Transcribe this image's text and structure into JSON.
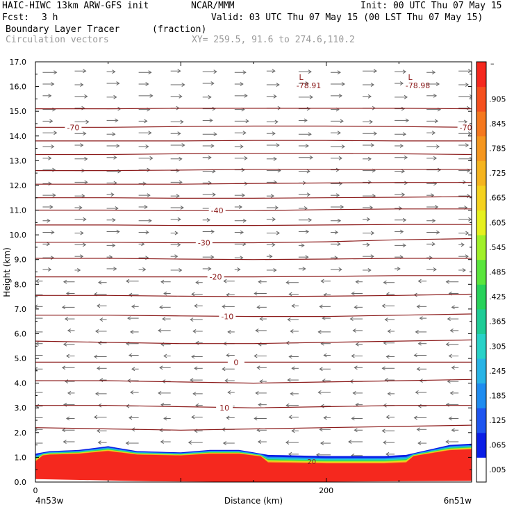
{
  "header": {
    "model": "HAIC-HIWC 13km ARW-GFS init",
    "org": "NCAR/MMM",
    "init": "Init: 00 UTC Thu 07 May 15",
    "fcst_label": "Fcst:",
    "fcst_value": "3 h",
    "valid": "Valid: 03 UTC Thu 07 May 15 (00 LST Thu 07 May 15)",
    "field": "Boundary Layer Tracer",
    "field_units": "(fraction)",
    "overlay": "Circulation vectors",
    "xy": "XY= 259.5, 91.6 to 274.6,110.2"
  },
  "chart_data": {
    "type": "heatmap",
    "xlabel": "Distance (km)",
    "ylabel": "Height (km)",
    "xlim": [
      0,
      300
    ],
    "ylim": [
      0,
      17
    ],
    "x_ticks": [
      0,
      200
    ],
    "y_ticks": [
      "0.0",
      "1.0",
      "2.0",
      "3.0",
      "4.0",
      "5.0",
      "6.0",
      "7.0",
      "8.0",
      "9.0",
      "10.0",
      "11.0",
      "12.0",
      "13.0",
      "14.0",
      "15.0",
      "16.0",
      "17.0"
    ],
    "x_endpoints": {
      "left": "4n53w",
      "right": "6n51w"
    },
    "colorbar": {
      "labels": [
        ".005",
        ".065",
        ".125",
        ".185",
        ".245",
        ".305",
        ".365",
        ".425",
        ".485",
        ".545",
        ".605",
        ".665",
        ".725",
        ".785",
        ".845",
        ".905"
      ],
      "top_mark": "–",
      "colors": [
        "#ffffff",
        "#0a1ee6",
        "#1e55f0",
        "#1e8cf0",
        "#28b4e6",
        "#28d2c8",
        "#1ecc96",
        "#28d25a",
        "#5ae63c",
        "#a0f028",
        "#e6f01e",
        "#f5d21e",
        "#f5b41e",
        "#f5961e",
        "#f5781e",
        "#f5501e",
        "#f5281e"
      ]
    },
    "tracer_surface_km": [
      [
        0,
        1.15
      ],
      [
        10,
        1.25
      ],
      [
        30,
        1.3
      ],
      [
        50,
        1.45
      ],
      [
        70,
        1.25
      ],
      [
        100,
        1.2
      ],
      [
        120,
        1.3
      ],
      [
        140,
        1.3
      ],
      [
        160,
        1.1
      ],
      [
        200,
        1.05
      ],
      [
        240,
        1.05
      ],
      [
        255,
        1.1
      ],
      [
        270,
        1.3
      ],
      [
        285,
        1.5
      ],
      [
        300,
        1.55
      ]
    ],
    "isotherms": [
      {
        "label": "10",
        "x": 130,
        "z": [
          3.1,
          3.1,
          3.05,
          3.0,
          3.05,
          3.1,
          3.1
        ]
      },
      {
        "label": "0",
        "x": 138,
        "z": [
          4.85,
          4.85,
          4.85,
          4.85,
          4.85,
          4.85,
          4.85
        ]
      },
      {
        "label": "-10",
        "x": 132,
        "z": [
          6.75,
          6.75,
          6.72,
          6.7,
          6.7,
          6.75,
          6.8
        ]
      },
      {
        "label": "-20",
        "x": 124,
        "z": [
          8.3,
          8.3,
          8.3,
          8.3,
          8.32,
          8.35,
          8.35
        ]
      },
      {
        "label": "-30",
        "x": 116,
        "z": [
          9.7,
          9.7,
          9.68,
          9.68,
          9.72,
          9.8,
          9.85
        ]
      },
      {
        "label": "-40",
        "x": 125,
        "z": [
          11.0,
          11.0,
          10.98,
          10.98,
          11.02,
          11.05,
          11.05
        ]
      },
      {
        "label": "-70",
        "x": 26,
        "z": [
          14.35,
          14.35,
          14.38,
          14.4,
          14.4,
          14.38,
          14.35
        ]
      },
      {
        "label": "",
        "x": 0,
        "z": [
          2.2,
          2.15,
          2.1,
          2.15,
          2.2,
          2.25,
          2.3
        ]
      },
      {
        "label": "",
        "x": 0,
        "z": [
          4.1,
          4.1,
          4.05,
          4.0,
          4.05,
          4.1,
          4.15
        ]
      },
      {
        "label": "",
        "x": 0,
        "z": [
          5.7,
          5.65,
          5.6,
          5.6,
          5.65,
          5.7,
          5.75
        ]
      },
      {
        "label": "",
        "x": 0,
        "z": [
          7.55,
          7.55,
          7.52,
          7.5,
          7.52,
          7.55,
          7.6
        ]
      },
      {
        "label": "",
        "x": 0,
        "z": [
          9.05,
          9.05,
          9.02,
          9.0,
          9.02,
          9.05,
          9.05
        ]
      },
      {
        "label": "",
        "x": 0,
        "z": [
          10.4,
          10.4,
          10.38,
          10.38,
          10.4,
          10.42,
          10.42
        ]
      },
      {
        "label": "",
        "x": 0,
        "z": [
          11.5,
          11.5,
          11.48,
          11.48,
          11.5,
          11.52,
          11.55
        ]
      },
      {
        "label": "",
        "x": 0,
        "z": [
          12.05,
          12.05,
          12.05,
          12.08,
          12.1,
          12.12,
          12.12
        ]
      },
      {
        "label": "",
        "x": 0,
        "z": [
          12.6,
          12.6,
          12.62,
          12.65,
          12.65,
          12.65,
          12.65
        ]
      },
      {
        "label": "",
        "x": 0,
        "z": [
          13.25,
          13.25,
          13.28,
          13.3,
          13.3,
          13.28,
          13.25
        ]
      },
      {
        "label": "",
        "x": 0,
        "z": [
          13.8,
          13.8,
          13.8,
          13.82,
          13.82,
          13.8,
          13.8
        ]
      },
      {
        "label": "",
        "x": 0,
        "z": [
          15.1,
          15.1,
          15.12,
          15.12,
          15.12,
          15.12,
          15.1
        ]
      }
    ],
    "lows": [
      {
        "label": "L",
        "value": "-78.91",
        "x": 188,
        "z": 16.1
      },
      {
        "label": "L",
        "value": "-78.98",
        "x": 263,
        "z": 16.1
      }
    ],
    "right_labels": [
      {
        "label": "-70",
        "x": 296,
        "z": 14.35
      }
    ],
    "bl_label": {
      "label": "20",
      "x": 190,
      "z": 0.85
    }
  }
}
